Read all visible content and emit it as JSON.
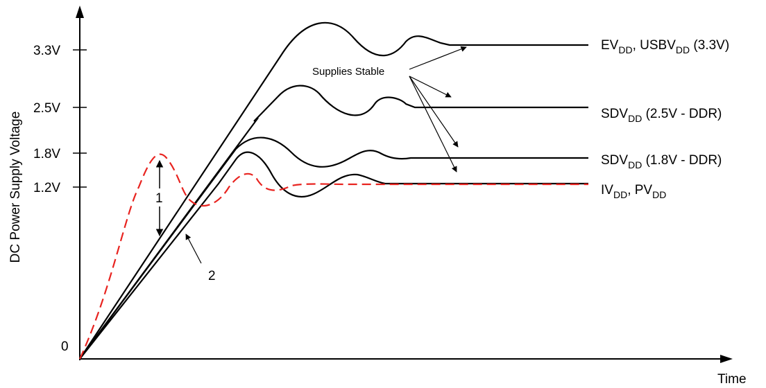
{
  "diagram": {
    "y_axis_title": "DC Power Supply Voltage",
    "x_axis_title": "Time",
    "origin_label": "0",
    "y_ticks": [
      "3.3V",
      "2.5V",
      "1.8V",
      "1.2V"
    ],
    "supplies_stable_label": "Supplies Stable",
    "annotation_1": "1",
    "annotation_2": "2",
    "curves": {
      "ev": {
        "main": "EV",
        "sub1": "DD",
        "mid": ", USBV",
        "sub2": "DD",
        "tail": " (3.3V)"
      },
      "sd25": {
        "main": "SDV",
        "sub1": "DD",
        "tail": " (2.5V - DDR)"
      },
      "sd18": {
        "main": "SDV",
        "sub1": "DD",
        "tail": " (1.8V - DDR)"
      },
      "iv": {
        "main": "IV",
        "sub1": "DD",
        "mid": ", PV",
        "sub2": "DD"
      }
    },
    "colors": {
      "supply_line": "#000000",
      "dashed_line": "#e8231f"
    }
  }
}
